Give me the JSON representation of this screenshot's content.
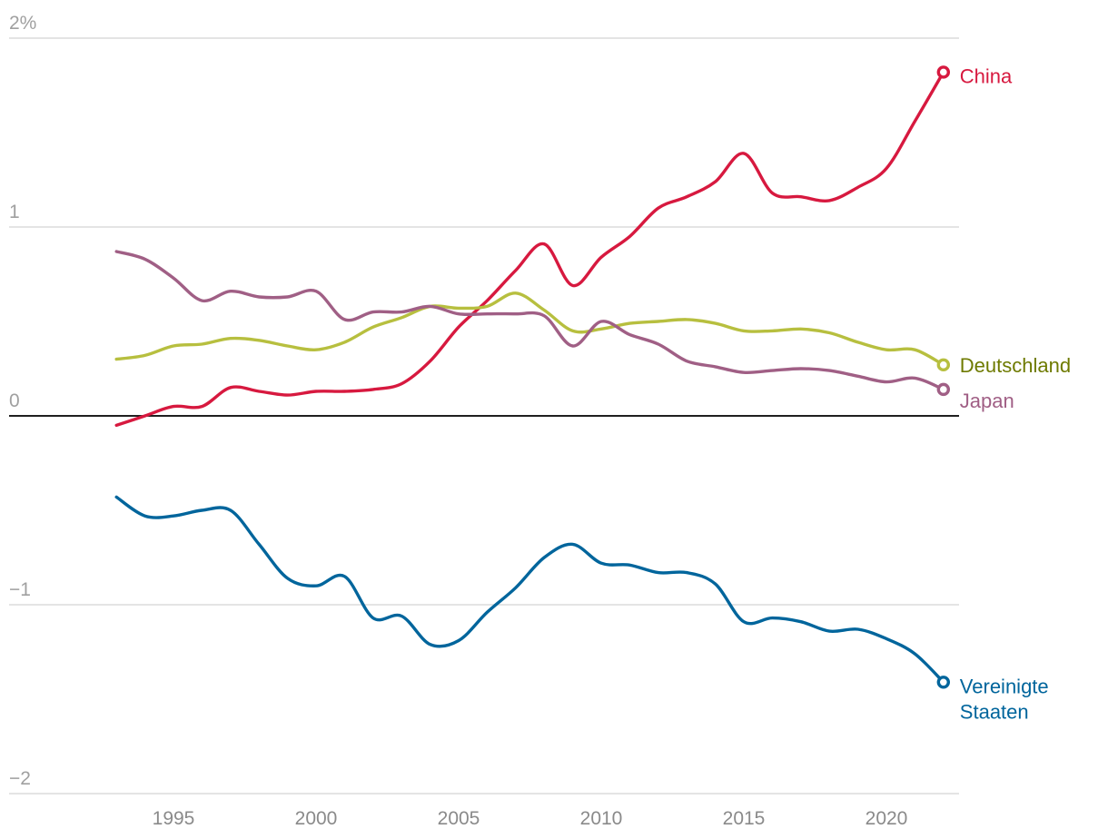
{
  "chart_data": {
    "type": "line",
    "title": "",
    "xlabel": "",
    "ylabel": "",
    "y_unit_label": "2%",
    "ylim": [
      -2,
      2
    ],
    "xlim": [
      1990,
      2023
    ],
    "grid": true,
    "y_ticks": [
      {
        "value": 2,
        "label": "2%"
      },
      {
        "value": 1,
        "label": "1"
      },
      {
        "value": 0,
        "label": "0"
      },
      {
        "value": -1,
        "label": "−1"
      },
      {
        "value": -2,
        "label": "−2"
      }
    ],
    "x_ticks": [
      {
        "value": 1995,
        "label": "1995"
      },
      {
        "value": 2000,
        "label": "2000"
      },
      {
        "value": 2005,
        "label": "2005"
      },
      {
        "value": 2010,
        "label": "2010"
      },
      {
        "value": 2015,
        "label": "2015"
      },
      {
        "value": 2020,
        "label": "2020"
      }
    ],
    "series": [
      {
        "name": "China",
        "label_lines": [
          "China"
        ],
        "color": "#d7193f",
        "label_color": "#d7193f",
        "x": [
          1993,
          1994,
          1995,
          1996,
          1997,
          1998,
          1999,
          2000,
          2001,
          2002,
          2003,
          2004,
          2005,
          2006,
          2007,
          2008,
          2009,
          2010,
          2011,
          2012,
          2013,
          2014,
          2015,
          2016,
          2017,
          2018,
          2019,
          2020,
          2021,
          2022
        ],
        "values": [
          -0.05,
          0.0,
          0.05,
          0.05,
          0.15,
          0.13,
          0.11,
          0.13,
          0.13,
          0.14,
          0.17,
          0.29,
          0.47,
          0.61,
          0.77,
          0.91,
          0.69,
          0.84,
          0.95,
          1.1,
          1.16,
          1.24,
          1.39,
          1.18,
          1.16,
          1.14,
          1.21,
          1.31,
          1.56,
          1.82
        ]
      },
      {
        "name": "Deutschland",
        "label_lines": [
          "Deutschland"
        ],
        "color": "#b7bf3f",
        "label_color": "#6e7a00",
        "x": [
          1993,
          1994,
          1995,
          1996,
          1997,
          1998,
          1999,
          2000,
          2001,
          2002,
          2003,
          2004,
          2005,
          2006,
          2007,
          2008,
          2009,
          2010,
          2011,
          2012,
          2013,
          2014,
          2015,
          2016,
          2017,
          2018,
          2019,
          2020,
          2021,
          2022
        ],
        "values": [
          0.3,
          0.32,
          0.37,
          0.38,
          0.41,
          0.4,
          0.37,
          0.35,
          0.39,
          0.47,
          0.52,
          0.58,
          0.57,
          0.58,
          0.65,
          0.56,
          0.45,
          0.46,
          0.49,
          0.5,
          0.51,
          0.49,
          0.45,
          0.45,
          0.46,
          0.44,
          0.39,
          0.35,
          0.35,
          0.27
        ]
      },
      {
        "name": "Japan",
        "label_lines": [
          "Japan"
        ],
        "color": "#a05f85",
        "label_color": "#a05f85",
        "x": [
          1993,
          1994,
          1995,
          1996,
          1997,
          1998,
          1999,
          2000,
          2001,
          2002,
          2003,
          2004,
          2005,
          2006,
          2007,
          2008,
          2009,
          2010,
          2011,
          2012,
          2013,
          2014,
          2015,
          2016,
          2017,
          2018,
          2019,
          2020,
          2021,
          2022
        ],
        "values": [
          0.87,
          0.83,
          0.73,
          0.61,
          0.66,
          0.63,
          0.63,
          0.66,
          0.51,
          0.55,
          0.55,
          0.58,
          0.54,
          0.54,
          0.54,
          0.53,
          0.37,
          0.5,
          0.43,
          0.38,
          0.29,
          0.26,
          0.23,
          0.24,
          0.25,
          0.24,
          0.21,
          0.18,
          0.2,
          0.14
        ]
      },
      {
        "name": "Vereinigte Staaten",
        "label_lines": [
          "Vereinigte",
          "Staaten"
        ],
        "color": "#00659c",
        "label_color": "#00659c",
        "x": [
          1993,
          1994,
          1995,
          1996,
          1997,
          1998,
          1999,
          2000,
          2001,
          2002,
          2003,
          2004,
          2005,
          2006,
          2007,
          2008,
          2009,
          2010,
          2011,
          2012,
          2013,
          2014,
          2015,
          2016,
          2017,
          2018,
          2019,
          2020,
          2021,
          2022
        ],
        "values": [
          -0.43,
          -0.53,
          -0.53,
          -0.5,
          -0.5,
          -0.68,
          -0.86,
          -0.9,
          -0.85,
          -1.07,
          -1.06,
          -1.21,
          -1.19,
          -1.04,
          -0.91,
          -0.75,
          -0.68,
          -0.78,
          -0.79,
          -0.83,
          -0.83,
          -0.89,
          -1.09,
          -1.07,
          -1.09,
          -1.14,
          -1.13,
          -1.18,
          -1.26,
          -1.41
        ]
      }
    ]
  }
}
